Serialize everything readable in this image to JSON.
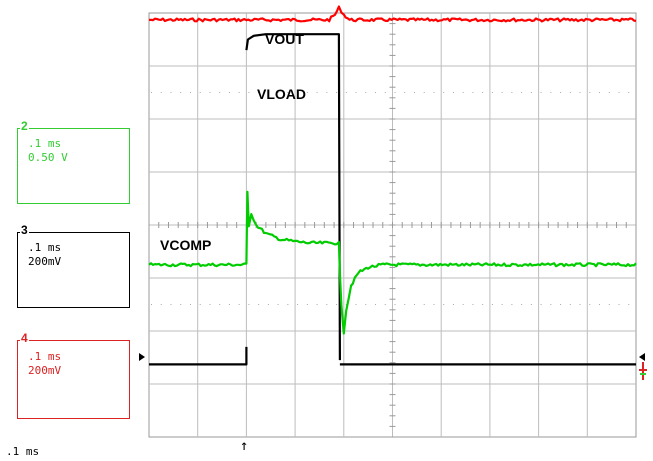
{
  "chart_data": {
    "type": "line",
    "title": "",
    "xlabel": "",
    "ylabel": "",
    "x_divisions": 10,
    "y_divisions": 8,
    "x_unit": "div",
    "y_unit": "div",
    "grid": true,
    "series": [
      {
        "name": "VOUT",
        "color": "#ff0000",
        "x": [
          0,
          2.0,
          3.7,
          3.82,
          3.9,
          4.0,
          4.12,
          10
        ],
        "y": [
          3.87,
          3.87,
          3.87,
          3.97,
          4.1,
          3.97,
          3.87,
          3.87
        ]
      },
      {
        "name": "VLOAD",
        "color": "#000000",
        "x": [
          2.0,
          2.03,
          2.15,
          2.4,
          3.0,
          3.6,
          3.9,
          3.92
        ],
        "y": [
          3.3,
          3.5,
          3.57,
          3.6,
          3.6,
          3.6,
          3.6,
          -2.55
        ]
      },
      {
        "name": "VCOMP",
        "color": "#00cc00",
        "x": [
          0,
          2.0,
          2.02,
          2.05,
          2.1,
          2.2,
          2.4,
          2.7,
          3.0,
          3.3,
          3.6,
          3.9,
          3.92,
          3.95,
          4.0,
          4.05,
          4.15,
          4.3,
          4.5,
          4.8,
          5.2,
          10
        ],
        "y": [
          -0.75,
          -0.75,
          0.62,
          0.0,
          0.22,
          0.0,
          -0.16,
          -0.27,
          -0.31,
          -0.34,
          -0.34,
          -0.34,
          -0.95,
          -1.5,
          -2.02,
          -1.6,
          -1.14,
          -0.9,
          -0.8,
          -0.75,
          -0.75,
          -0.75
        ]
      },
      {
        "name": "",
        "color": "#000000",
        "x": [
          0,
          2.0,
          2.0
        ],
        "y": [
          -2.63,
          -2.63,
          -2.3
        ]
      },
      {
        "name": "",
        "color": "#000000",
        "x": [
          3.92,
          10
        ],
        "y": [
          -2.63,
          -2.63
        ]
      }
    ],
    "annotations": [
      "VOUT",
      "VLOAD",
      "VCOMP"
    ]
  },
  "channels": [
    {
      "num": "2",
      "line1": ".1 ms",
      "line2": "0.50 V",
      "color": "#33cc33"
    },
    {
      "num": "3",
      "line1": ".1 ms",
      "line2": "200mV",
      "color": "#000000"
    },
    {
      "num": "4",
      "line1": ".1 ms",
      "line2": "200mV",
      "color": "#dd2222"
    }
  ],
  "footer": {
    "timebase": ".1 ms",
    "trigger_arrow": "↑"
  }
}
